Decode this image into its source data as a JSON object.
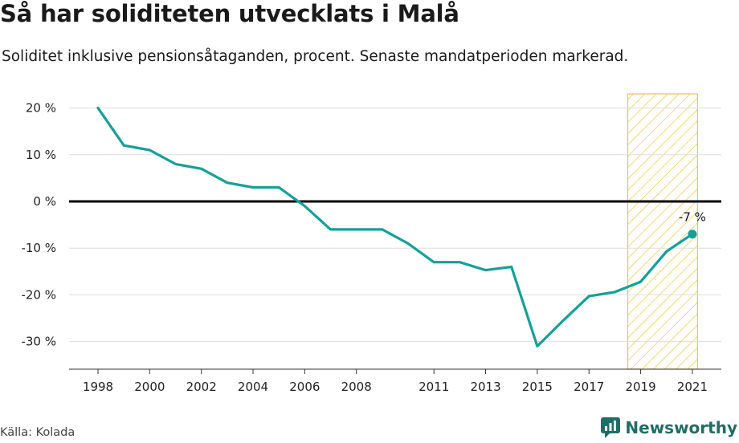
{
  "title": "Så har soliditeten utvecklats i Malå",
  "subtitle": "Soliditet inklusive pensionsåtaganden, procent. Senaste mandatperioden markerad.",
  "source": "Källa: Kolada",
  "brand": "Newsworthy",
  "colors": {
    "line": "#14a098",
    "zero_line": "#000000",
    "highlight": "#f5c242",
    "grid": "#dddddd"
  },
  "chart_data": {
    "type": "line",
    "title": "Så har soliditeten utvecklats i Malå",
    "subtitle": "Soliditet inklusive pensionsåtaganden, procent. Senaste mandatperioden markerad.",
    "x": [
      1998,
      1999,
      2000,
      2001,
      2002,
      2003,
      2004,
      2005,
      2006,
      2007,
      2008,
      2009,
      2010,
      2011,
      2012,
      2013,
      2014,
      2015,
      2016,
      2017,
      2018,
      2019,
      2020,
      2021
    ],
    "series": [
      {
        "values": [
          20,
          12,
          11,
          8,
          7,
          4,
          3,
          3,
          -1,
          -6,
          -6,
          -6,
          -9,
          -13,
          -13,
          -14.7,
          -14,
          -31,
          -25.5,
          -20.3,
          -19.4,
          -17.2,
          -10.7,
          -7
        ]
      }
    ],
    "x_ticks": [
      "1998",
      "2000",
      "2002",
      "2004",
      "2006",
      "2008",
      "2011",
      "2013",
      "2015",
      "2017",
      "2019",
      "2021"
    ],
    "y_ticks": [
      20,
      10,
      0,
      -10,
      -20,
      -30
    ],
    "y_tick_labels": [
      "20 %",
      "10 %",
      "0 %",
      "-10 %",
      "-20 %",
      "-30 %"
    ],
    "ylim": [
      -36,
      23
    ],
    "highlight_period": [
      2018.5,
      2021.2
    ],
    "last_value_label": "-7 %",
    "grid": true
  }
}
